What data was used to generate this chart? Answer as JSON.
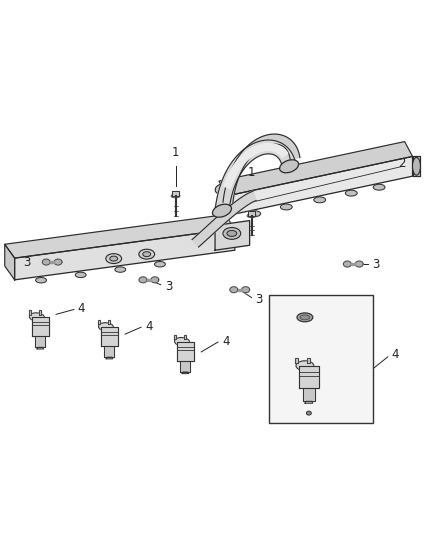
{
  "bg_color": "#ffffff",
  "fig_width": 4.38,
  "fig_height": 5.33,
  "dpi": 100,
  "line_color": "#2a2a2a",
  "label_font_size": 8.5,
  "label_color": "#222222"
}
